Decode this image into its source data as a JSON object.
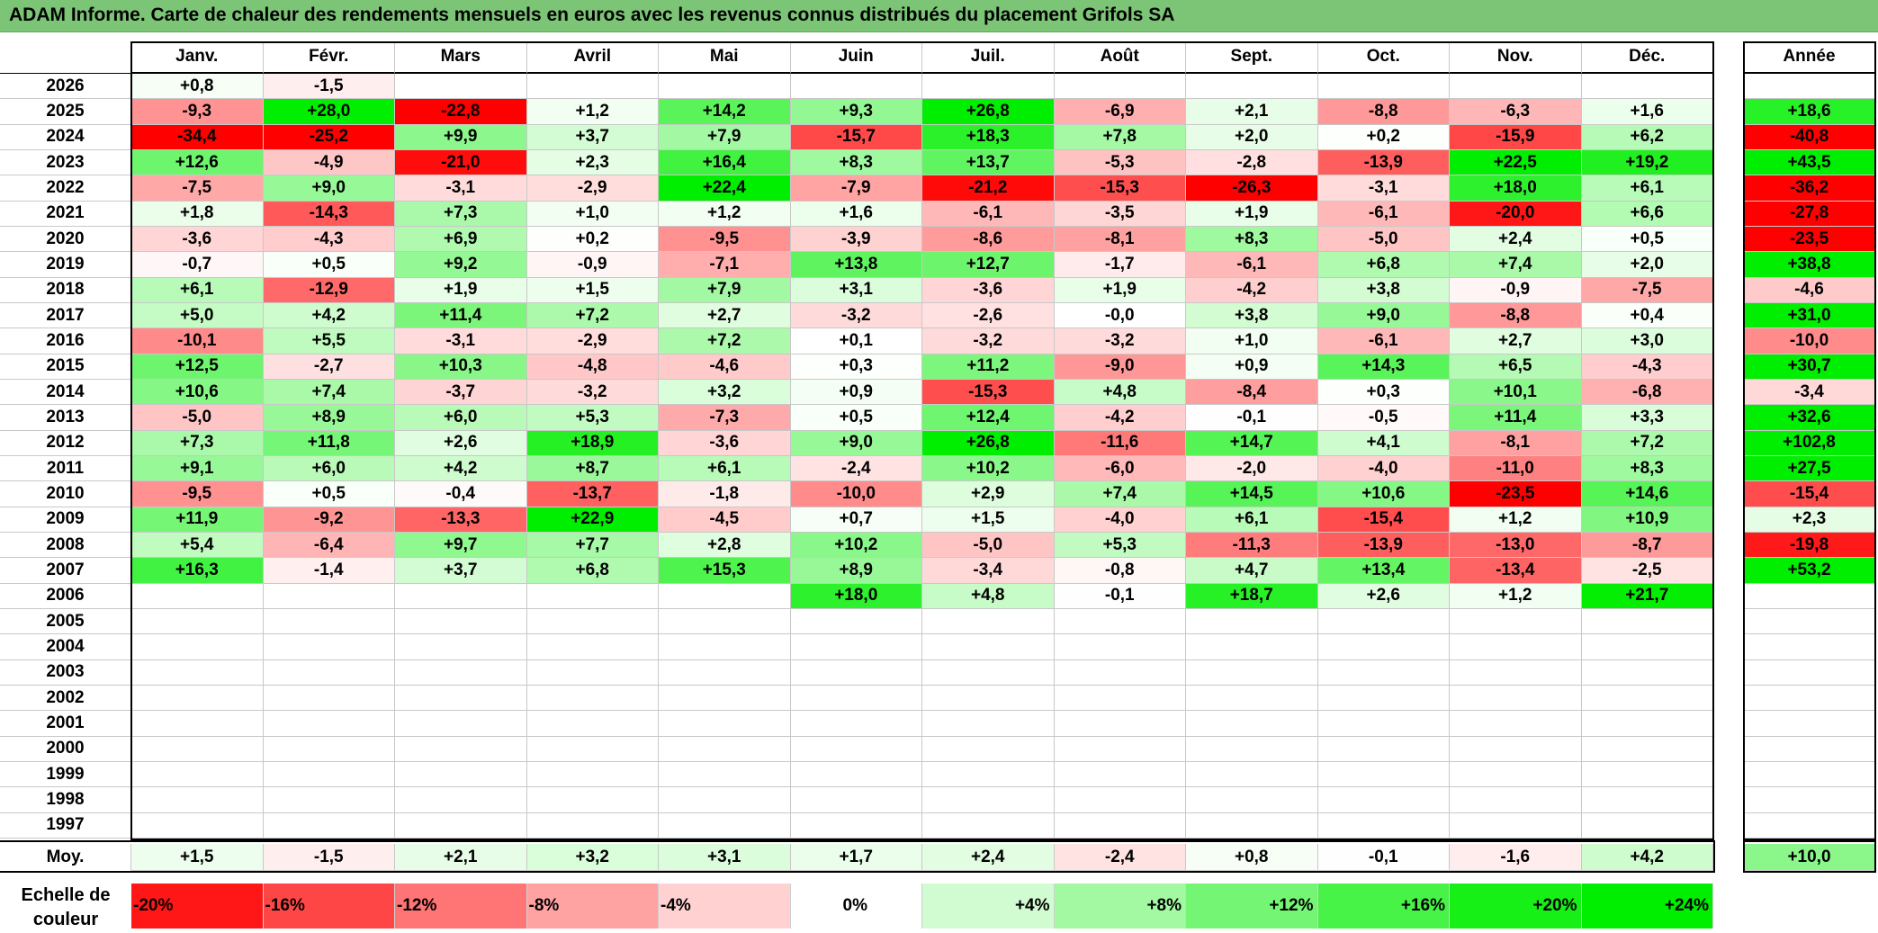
{
  "title": "ADAM Informe. Carte de chaleur des rendements mensuels en euros avec les revenus connus distribués du placement Grifols SA",
  "chart_data": {
    "type": "heatmap",
    "title": "ADAM Informe. Carte de chaleur des rendements mensuels en euros avec les revenus connus distribués du placement Grifols SA",
    "months": [
      "Janv.",
      "Févr.",
      "Mars",
      "Avril",
      "Mai",
      "Juin",
      "Juil.",
      "Août",
      "Sept.",
      "Oct.",
      "Nov.",
      "Déc."
    ],
    "year_header": "Année",
    "rows": [
      {
        "year": "2026",
        "values": [
          "+0,8",
          "-1,5",
          "",
          "",
          "",
          "",
          "",
          "",
          "",
          "",
          "",
          ""
        ],
        "annual": ""
      },
      {
        "year": "2025",
        "values": [
          "-9,3",
          "+28,0",
          "-22,8",
          "+1,2",
          "+14,2",
          "+9,3",
          "+26,8",
          "-6,9",
          "+2,1",
          "-8,8",
          "-6,3",
          "+1,6"
        ],
        "annual": "+18,6"
      },
      {
        "year": "2024",
        "values": [
          "-34,4",
          "-25,2",
          "+9,9",
          "+3,7",
          "+7,9",
          "-15,7",
          "+18,3",
          "+7,8",
          "+2,0",
          "+0,2",
          "-15,9",
          "+6,2"
        ],
        "annual": "-40,8"
      },
      {
        "year": "2023",
        "values": [
          "+12,6",
          "-4,9",
          "-21,0",
          "+2,3",
          "+16,4",
          "+8,3",
          "+13,7",
          "-5,3",
          "-2,8",
          "-13,9",
          "+22,5",
          "+19,2"
        ],
        "annual": "+43,5"
      },
      {
        "year": "2022",
        "values": [
          "-7,5",
          "+9,0",
          "-3,1",
          "-2,9",
          "+22,4",
          "-7,9",
          "-21,2",
          "-15,3",
          "-26,3",
          "-3,1",
          "+18,0",
          "+6,1"
        ],
        "annual": "-36,2"
      },
      {
        "year": "2021",
        "values": [
          "+1,8",
          "-14,3",
          "+7,3",
          "+1,0",
          "+1,2",
          "+1,6",
          "-6,1",
          "-3,5",
          "+1,9",
          "-6,1",
          "-20,0",
          "+6,6"
        ],
        "annual": "-27,8"
      },
      {
        "year": "2020",
        "values": [
          "-3,6",
          "-4,3",
          "+6,9",
          "+0,2",
          "-9,5",
          "-3,9",
          "-8,6",
          "-8,1",
          "+8,3",
          "-5,0",
          "+2,4",
          "+0,5"
        ],
        "annual": "-23,5"
      },
      {
        "year": "2019",
        "values": [
          "-0,7",
          "+0,5",
          "+9,2",
          "-0,9",
          "-7,1",
          "+13,8",
          "+12,7",
          "-1,7",
          "-6,1",
          "+6,8",
          "+7,4",
          "+2,0"
        ],
        "annual": "+38,8"
      },
      {
        "year": "2018",
        "values": [
          "+6,1",
          "-12,9",
          "+1,9",
          "+1,5",
          "+7,9",
          "+3,1",
          "-3,6",
          "+1,9",
          "-4,2",
          "+3,8",
          "-0,9",
          "-7,5"
        ],
        "annual": "-4,6"
      },
      {
        "year": "2017",
        "values": [
          "+5,0",
          "+4,2",
          "+11,4",
          "+7,2",
          "+2,7",
          "-3,2",
          "-2,6",
          "-0,0",
          "+3,8",
          "+9,0",
          "-8,8",
          "+0,4"
        ],
        "annual": "+31,0"
      },
      {
        "year": "2016",
        "values": [
          "-10,1",
          "+5,5",
          "-3,1",
          "-2,9",
          "+7,2",
          "+0,1",
          "-3,2",
          "-3,2",
          "+1,0",
          "-6,1",
          "+2,7",
          "+3,0"
        ],
        "annual": "-10,0"
      },
      {
        "year": "2015",
        "values": [
          "+12,5",
          "-2,7",
          "+10,3",
          "-4,8",
          "-4,6",
          "+0,3",
          "+11,2",
          "-9,0",
          "+0,9",
          "+14,3",
          "+6,5",
          "-4,3"
        ],
        "annual": "+30,7"
      },
      {
        "year": "2014",
        "values": [
          "+10,6",
          "+7,4",
          "-3,7",
          "-3,2",
          "+3,2",
          "+0,9",
          "-15,3",
          "+4,8",
          "-8,4",
          "+0,3",
          "+10,1",
          "-6,8"
        ],
        "annual": "-3,4"
      },
      {
        "year": "2013",
        "values": [
          "-5,0",
          "+8,9",
          "+6,0",
          "+5,3",
          "-7,3",
          "+0,5",
          "+12,4",
          "-4,2",
          "-0,1",
          "-0,5",
          "+11,4",
          "+3,3"
        ],
        "annual": "+32,6"
      },
      {
        "year": "2012",
        "values": [
          "+7,3",
          "+11,8",
          "+2,6",
          "+18,9",
          "-3,6",
          "+9,0",
          "+26,8",
          "-11,6",
          "+14,7",
          "+4,1",
          "-8,1",
          "+7,2"
        ],
        "annual": "+102,8"
      },
      {
        "year": "2011",
        "values": [
          "+9,1",
          "+6,0",
          "+4,2",
          "+8,7",
          "+6,1",
          "-2,4",
          "+10,2",
          "-6,0",
          "-2,0",
          "-4,0",
          "-11,0",
          "+8,3"
        ],
        "annual": "+27,5"
      },
      {
        "year": "2010",
        "values": [
          "-9,5",
          "+0,5",
          "-0,4",
          "-13,7",
          "-1,8",
          "-10,0",
          "+2,9",
          "+7,4",
          "+14,5",
          "+10,6",
          "-23,5",
          "+14,6"
        ],
        "annual": "-15,4"
      },
      {
        "year": "2009",
        "values": [
          "+11,9",
          "-9,2",
          "-13,3",
          "+22,9",
          "-4,5",
          "+0,7",
          "+1,5",
          "-4,0",
          "+6,1",
          "-15,4",
          "+1,2",
          "+10,9"
        ],
        "annual": "+2,3"
      },
      {
        "year": "2008",
        "values": [
          "+5,4",
          "-6,4",
          "+9,7",
          "+7,7",
          "+2,8",
          "+10,2",
          "-5,0",
          "+5,3",
          "-11,3",
          "-13,9",
          "-13,0",
          "-8,7"
        ],
        "annual": "-19,8"
      },
      {
        "year": "2007",
        "values": [
          "+16,3",
          "-1,4",
          "+3,7",
          "+6,8",
          "+15,3",
          "+8,9",
          "-3,4",
          "-0,8",
          "+4,7",
          "+13,4",
          "-13,4",
          "-2,5"
        ],
        "annual": "+53,2"
      },
      {
        "year": "2006",
        "values": [
          "",
          "",
          "",
          "",
          "",
          "+18,0",
          "+4,8",
          "-0,1",
          "+18,7",
          "+2,6",
          "+1,2",
          "+21,7"
        ],
        "annual": ""
      },
      {
        "year": "2005",
        "values": [
          "",
          "",
          "",
          "",
          "",
          "",
          "",
          "",
          "",
          "",
          "",
          ""
        ],
        "annual": ""
      },
      {
        "year": "2004",
        "values": [
          "",
          "",
          "",
          "",
          "",
          "",
          "",
          "",
          "",
          "",
          "",
          ""
        ],
        "annual": ""
      },
      {
        "year": "2003",
        "values": [
          "",
          "",
          "",
          "",
          "",
          "",
          "",
          "",
          "",
          "",
          "",
          ""
        ],
        "annual": ""
      },
      {
        "year": "2002",
        "values": [
          "",
          "",
          "",
          "",
          "",
          "",
          "",
          "",
          "",
          "",
          "",
          ""
        ],
        "annual": ""
      },
      {
        "year": "2001",
        "values": [
          "",
          "",
          "",
          "",
          "",
          "",
          "",
          "",
          "",
          "",
          "",
          ""
        ],
        "annual": ""
      },
      {
        "year": "2000",
        "values": [
          "",
          "",
          "",
          "",
          "",
          "",
          "",
          "",
          "",
          "",
          "",
          ""
        ],
        "annual": ""
      },
      {
        "year": "1999",
        "values": [
          "",
          "",
          "",
          "",
          "",
          "",
          "",
          "",
          "",
          "",
          "",
          ""
        ],
        "annual": ""
      },
      {
        "year": "1998",
        "values": [
          "",
          "",
          "",
          "",
          "",
          "",
          "",
          "",
          "",
          "",
          "",
          ""
        ],
        "annual": ""
      },
      {
        "year": "1997",
        "values": [
          "",
          "",
          "",
          "",
          "",
          "",
          "",
          "",
          "",
          "",
          "",
          ""
        ],
        "annual": ""
      }
    ],
    "average": {
      "label": "Moy.",
      "values": [
        "+1,5",
        "-1,5",
        "+2,1",
        "+3,2",
        "+3,1",
        "+1,7",
        "+2,4",
        "-2,4",
        "+0,8",
        "-0,1",
        "-1,6",
        "+4,2"
      ],
      "annual": "+10,0"
    },
    "scale": {
      "label": "Echelle de couleur",
      "steps": [
        {
          "text": "-20%",
          "value": -20
        },
        {
          "text": "-16%",
          "value": -16
        },
        {
          "text": "-12%",
          "value": -12
        },
        {
          "text": "-8%",
          "value": -8
        },
        {
          "text": "-4%",
          "value": -4
        },
        {
          "text": "0%",
          "value": 0
        },
        {
          "text": "+4%",
          "value": 4
        },
        {
          "text": "+8%",
          "value": 8
        },
        {
          "text": "+12%",
          "value": 12
        },
        {
          "text": "+16%",
          "value": 16
        },
        {
          "text": "+20%",
          "value": 20
        },
        {
          "text": "+24%",
          "value": 24
        }
      ]
    },
    "colors": {
      "negative_max": "#ff0000",
      "positive_max": "#00ee00",
      "neutral": "#ffffff",
      "title_bar": "#7cc576"
    }
  }
}
